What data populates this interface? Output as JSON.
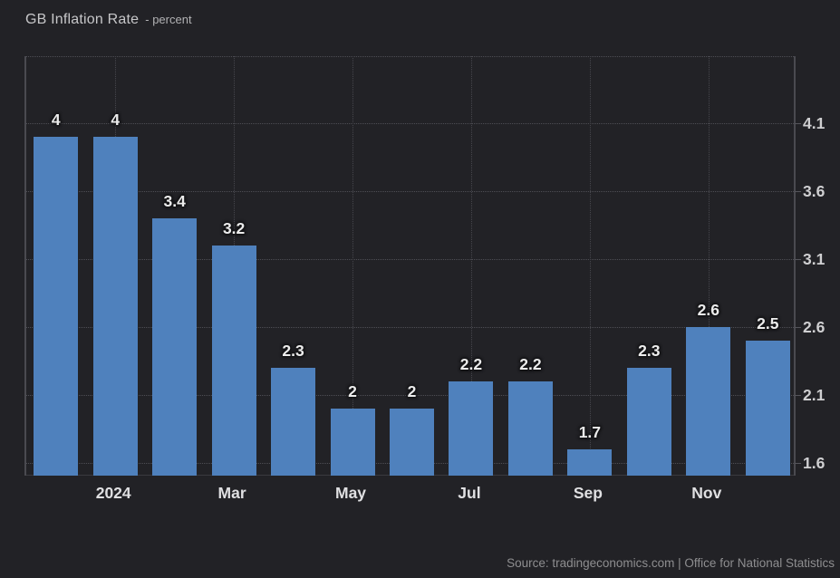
{
  "header": {
    "title": "GB Inflation Rate",
    "subtitle": "- percent"
  },
  "footer": {
    "source": "Source: tradingeconomics.com | Office for National Statistics"
  },
  "colors": {
    "background": "#222226",
    "bar": "#4f81bd",
    "grid_dotted": "#4e4e54",
    "axis_line": "#4a4a50",
    "bar_label": "#ececec",
    "tick_label": "#cfcfd1",
    "source_text": "#8e8e90"
  },
  "chart_data": {
    "type": "bar",
    "title": "GB Inflation Rate",
    "ylabel": "percent",
    "categories": [
      "",
      "2024",
      "",
      "Mar",
      "",
      "May",
      "",
      "Jul",
      "",
      "Sep",
      "",
      "Nov",
      ""
    ],
    "values": [
      4,
      4,
      3.4,
      3.2,
      2.3,
      2,
      2,
      2.2,
      2.2,
      1.7,
      2.3,
      2.6,
      2.5
    ],
    "bar_labels": [
      "4",
      "4",
      "3.4",
      "3.2",
      "2.3",
      "2",
      "2",
      "2.2",
      "2.2",
      "1.7",
      "2.3",
      "2.6",
      "2.5"
    ],
    "x_ticks": [
      {
        "label": "2024",
        "index": 1
      },
      {
        "label": "Mar",
        "index": 3
      },
      {
        "label": "May",
        "index": 5
      },
      {
        "label": "Jul",
        "index": 7
      },
      {
        "label": "Sep",
        "index": 9
      },
      {
        "label": "Nov",
        "index": 11
      }
    ],
    "y_ticks": [
      4.1,
      3.6,
      3.1,
      2.6,
      2.1,
      1.6
    ],
    "ylim": [
      1.51,
      4.59
    ],
    "grid": "dotted",
    "legend_position": "none",
    "yaxis_side": "right"
  }
}
